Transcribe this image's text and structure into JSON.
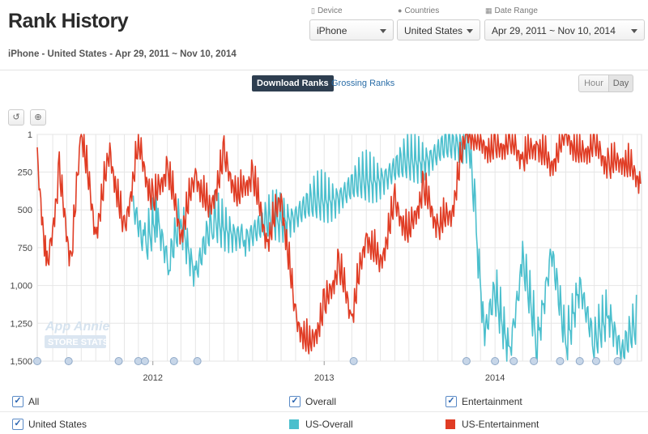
{
  "page": {
    "title": "Rank History",
    "subtitle": "iPhone - United States - Apr 29, 2011 ~ Nov 10, 2014"
  },
  "filters": {
    "device": {
      "label": "Device",
      "value": "iPhone"
    },
    "countries": {
      "label": "Countries",
      "value": "United States"
    },
    "date_range": {
      "label": "Date Range",
      "value": "Apr 29, 2011 ~ Nov 10, 2014"
    }
  },
  "tabs": {
    "active": "Download Ranks",
    "inactive": "Grossing Ranks"
  },
  "granularity": {
    "hour": "Hour",
    "day": "Day"
  },
  "toolbar": {
    "reset_icon": "undo-icon",
    "zoom_icon": "zoom-icon"
  },
  "watermark": {
    "line1": "App Annie",
    "line2": "STORE STATS"
  },
  "legend": {
    "all": "All",
    "overall": "Overall",
    "entertainment": "Entertainment",
    "country": "United States",
    "series_us_overall": "US-Overall",
    "series_us_entertainment": "US-Entertainment"
  },
  "colors": {
    "us_overall": "#4bbfcd",
    "us_entertainment": "#e03c24",
    "grid": "#e6e6e6"
  },
  "chart_data": {
    "type": "line",
    "y_axis": {
      "reversed": true,
      "ylim": [
        1,
        1500
      ],
      "ticks": [
        "1",
        "250",
        "500",
        "750",
        "1,000",
        "1,250",
        "1,500"
      ]
    },
    "x_axis": {
      "ticks": [
        "2012",
        "2013",
        "2014"
      ],
      "xlim": [
        "2011-04-29",
        "2014-11-10"
      ]
    },
    "grid": true,
    "legend_placement": "bottom",
    "series": [
      {
        "name": "US-Overall",
        "color": "#4bbfcd",
        "points": [
          [
            "2011-11-20",
            480
          ],
          [
            "2011-12-15",
            820
          ],
          [
            "2012-01-10",
            560
          ],
          [
            "2012-02-05",
            900
          ],
          [
            "2012-03-01",
            600
          ],
          [
            "2012-04-01",
            950
          ],
          [
            "2012-05-10",
            620
          ],
          [
            "2012-07-15",
            700
          ],
          [
            "2013-11-05",
            60
          ],
          [
            "2013-11-20",
            600
          ],
          [
            "2013-12-10",
            1350
          ],
          [
            "2014-01-01",
            1100
          ],
          [
            "2014-02-01",
            1450
          ],
          [
            "2014-03-01",
            900
          ],
          [
            "2014-04-01",
            1400
          ],
          [
            "2014-05-01",
            800
          ],
          [
            "2014-06-01",
            1450
          ],
          [
            "2014-07-01",
            1000
          ],
          [
            "2014-08-01",
            1450
          ],
          [
            "2014-09-01",
            1200
          ],
          [
            "2014-10-01",
            1480
          ],
          [
            "2014-11-01",
            1300
          ]
        ]
      },
      {
        "name": "US-Entertainment",
        "color": "#e03c24",
        "points": [
          [
            "2011-04-29",
            200
          ],
          [
            "2011-05-20",
            950
          ],
          [
            "2011-06-15",
            300
          ],
          [
            "2011-07-10",
            900
          ],
          [
            "2011-08-01",
            1
          ],
          [
            "2011-09-01",
            700
          ],
          [
            "2011-10-01",
            150
          ],
          [
            "2011-11-01",
            700
          ],
          [
            "2011-12-01",
            100
          ],
          [
            "2012-01-01",
            500
          ],
          [
            "2012-02-01",
            250
          ],
          [
            "2012-03-01",
            700
          ],
          [
            "2012-04-01",
            300
          ],
          [
            "2012-05-01",
            550
          ],
          [
            "2012-06-01",
            200
          ],
          [
            "2012-07-01",
            450
          ],
          [
            "2012-08-01",
            300
          ],
          [
            "2012-09-01",
            750
          ],
          [
            "2012-10-01",
            450
          ],
          [
            "2012-11-01",
            1250
          ],
          [
            "2012-12-01",
            1450
          ],
          [
            "2013-01-01",
            1200
          ],
          [
            "2013-02-01",
            900
          ],
          [
            "2013-03-01",
            1250
          ],
          [
            "2013-04-01",
            700
          ],
          [
            "2013-05-01",
            900
          ],
          [
            "2013-06-01",
            500
          ],
          [
            "2013-07-01",
            700
          ],
          [
            "2013-08-01",
            400
          ],
          [
            "2013-09-01",
            650
          ],
          [
            "2013-10-01",
            550
          ],
          [
            "2013-11-01",
            1
          ],
          [
            "2013-12-01",
            100
          ],
          [
            "2014-01-01",
            150
          ],
          [
            "2014-02-01",
            80
          ],
          [
            "2014-03-01",
            200
          ],
          [
            "2014-04-01",
            100
          ],
          [
            "2014-05-01",
            250
          ],
          [
            "2014-06-01",
            30
          ],
          [
            "2014-07-01",
            180
          ],
          [
            "2014-08-01",
            100
          ],
          [
            "2014-09-01",
            250
          ],
          [
            "2014-10-01",
            200
          ],
          [
            "2014-11-10",
            350
          ]
        ]
      }
    ]
  }
}
